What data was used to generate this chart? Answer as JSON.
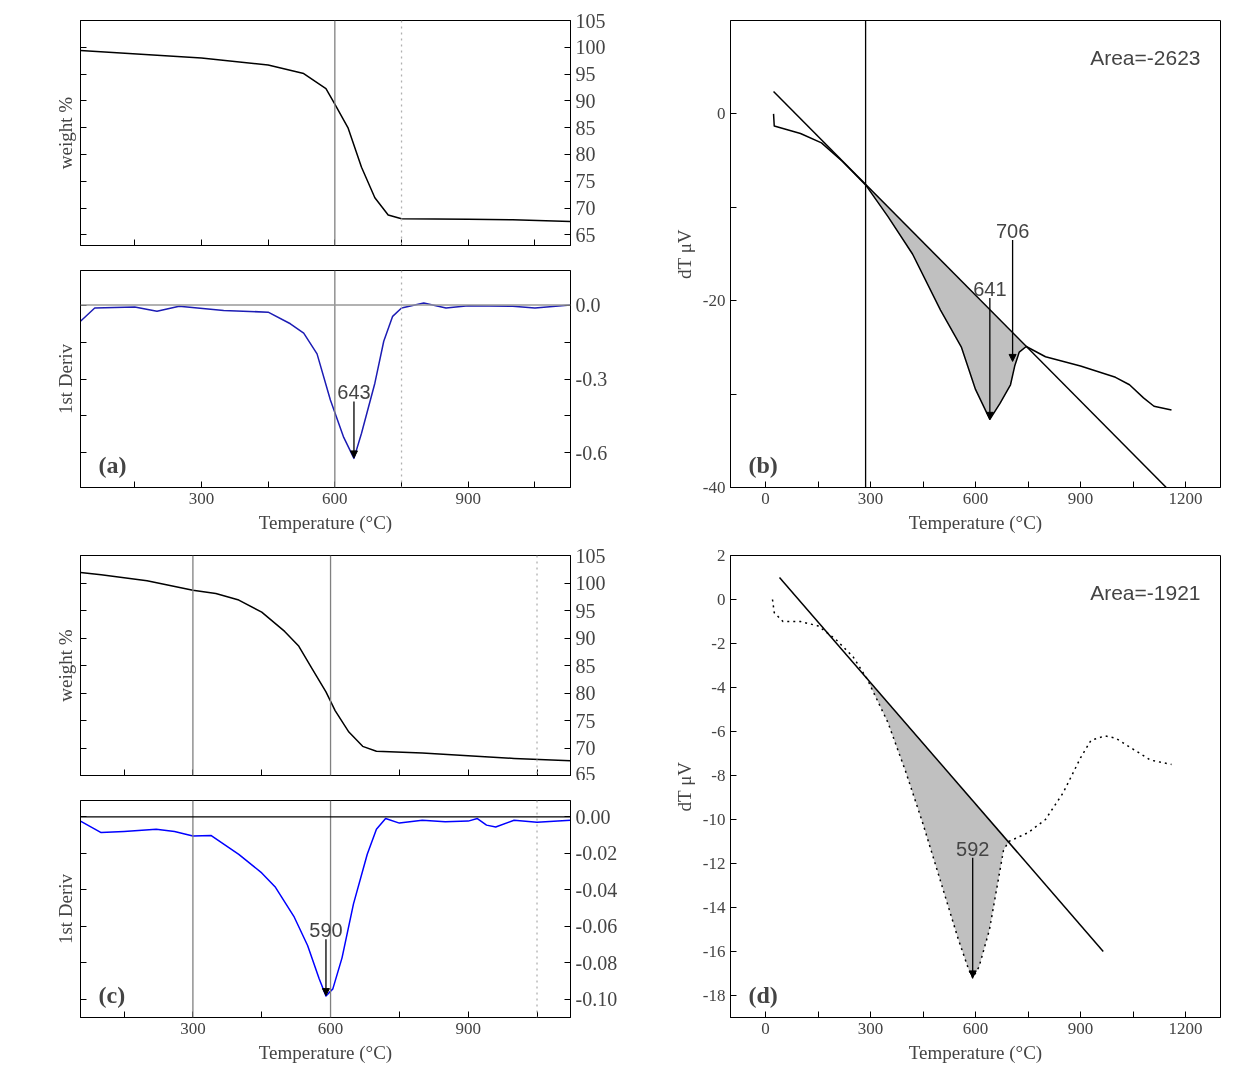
{
  "chart_data": [
    {
      "type": "line",
      "ylabel": "weight %",
      "tick_labels": "y",
      "xlim": [
        28,
        1130
      ],
      "ylim": [
        63,
        105
      ],
      "xticks": [
        {
          "value": 150,
          "label": null
        },
        300,
        {
          "value": 450,
          "label": null
        },
        600,
        {
          "value": 750,
          "label": null
        },
        900,
        {
          "value": 1050,
          "label": null
        }
      ],
      "yticks": [
        65,
        70,
        75,
        80,
        85,
        90,
        95,
        100,
        105
      ],
      "series": [
        {
          "color": "#000000",
          "x": [
            28,
            300,
            450,
            530,
            580,
            600,
            630,
            660,
            690,
            720,
            750,
            900,
            1000,
            1130
          ],
          "values": [
            99.4,
            98.0,
            96.7,
            95.1,
            92.3,
            89.4,
            84.9,
            77.6,
            71.9,
            68.7,
            68.0,
            67.9,
            67.8,
            67.5
          ]
        }
      ],
      "ref_lines": [
        {
          "axis": "x",
          "value": 600,
          "color": "#808080",
          "line_style": "solid"
        },
        {
          "axis": "x",
          "value": 750,
          "color": "#b0b0b0",
          "line_style": "dotted"
        }
      ]
    },
    {
      "type": "line",
      "title": "(a)",
      "ylabel": "1st Deriv",
      "xlabel": "Temperature (°C)",
      "xlim": [
        28,
        1130
      ],
      "ylim": [
        -0.74,
        0.14
      ],
      "xticks": [
        {
          "value": 150,
          "label": null
        },
        300,
        {
          "value": 450,
          "label": null
        },
        600,
        {
          "value": 750,
          "label": null
        },
        900,
        {
          "value": 1050,
          "label": null
        }
      ],
      "yticks": [
        {
          "value": 0,
          "label": "0.0"
        },
        {
          "value": -0.15,
          "label": null
        },
        -0.3,
        {
          "value": -0.45,
          "label": null
        },
        -0.6
      ],
      "series": [
        {
          "color": "#1c1cb4",
          "x": [
            28,
            60,
            150,
            200,
            250,
            350,
            450,
            500,
            530,
            560,
            590,
            620,
            643,
            660,
            690,
            710,
            730,
            750,
            800,
            850,
            900,
            1000,
            1050,
            1130
          ],
          "values": [
            -0.066,
            -0.012,
            -0.008,
            -0.025,
            -0.005,
            -0.022,
            -0.029,
            -0.076,
            -0.114,
            -0.198,
            -0.385,
            -0.537,
            -0.622,
            -0.52,
            -0.317,
            -0.147,
            -0.046,
            -0.012,
            0.008,
            -0.012,
            -0.003,
            -0.005,
            -0.012,
            0.0
          ]
        }
      ],
      "ref_lines": [
        {
          "axis": "x",
          "value": 600,
          "color": "#808080",
          "line_style": "solid"
        },
        {
          "axis": "x",
          "value": 750,
          "color": "#b0b0b0",
          "line_style": "dotted"
        },
        {
          "axis": "y",
          "value": 0,
          "color": "#999999",
          "line_style": "solid"
        }
      ],
      "annotations": [
        {
          "text": "643",
          "x": 643,
          "y": -0.62
        }
      ]
    },
    {
      "type": "line",
      "title": "(b)",
      "ylabel": "dT μV",
      "xlabel": "Temperature (°C)",
      "xlim": [
        -100,
        1300
      ],
      "ylim": [
        -40,
        10
      ],
      "xticks": [
        0,
        {
          "value": 150,
          "label": null
        },
        300,
        {
          "value": 450,
          "label": null
        },
        600,
        {
          "value": 750,
          "label": null
        },
        900,
        {
          "value": 1050,
          "label": null
        },
        1200
      ],
      "yticks": [
        -40,
        {
          "value": -30,
          "label": null
        },
        -20,
        {
          "value": -10,
          "label": null
        },
        0
      ],
      "series": [
        {
          "color": "#000000",
          "x": [
            23,
            25,
            100,
            160,
            220,
            286,
            350,
            420,
            500,
            560,
            600,
            641,
            670,
            700,
            712,
            725,
            745,
            800,
            900,
            1000,
            1040,
            1080,
            1110,
            1160
          ],
          "values": [
            0,
            -1.3,
            -2.1,
            -3.1,
            -5.1,
            -7.6,
            -11.0,
            -15.0,
            -21.0,
            -25.0,
            -29.5,
            -32.7,
            -31.0,
            -29.0,
            -27.0,
            -25.5,
            -24.9,
            -26.0,
            -27.0,
            -28.2,
            -29.0,
            -30.4,
            -31.3,
            -31.7
          ],
          "lower": [
            null,
            null,
            null,
            null,
            null,
            -7.6,
            -11.0,
            -15.0,
            -21.0,
            -25.0,
            -29.5,
            -32.7,
            -31.0,
            -29.0,
            -27.0,
            -25.5,
            -24.9,
            null,
            null,
            null,
            null,
            null,
            null,
            null
          ],
          "upper": [
            null,
            null,
            null,
            null,
            null,
            -7.5,
            -10.0,
            -12.6,
            -15.6,
            -17.9,
            -19.4,
            -21.0,
            -22.1,
            -23.2,
            -23.6,
            -24.1,
            -24.9,
            null,
            null,
            null,
            null,
            null,
            null,
            null
          ]
        },
        {
          "color": "#000000",
          "x": [
            23,
            1145
          ],
          "values": [
            2.4,
            -40
          ]
        }
      ],
      "ref_lines": [
        {
          "axis": "x",
          "value": 286,
          "color": "#000000",
          "line_style": "solid"
        }
      ],
      "annotations": [
        "Area=-2623",
        {
          "text": "641",
          "x": 641,
          "y": -32.7
        },
        {
          "text": "706",
          "x": 706,
          "y": -26.5
        }
      ]
    },
    {
      "type": "line",
      "ylabel": "weight %",
      "tick_labels": "y",
      "xlim": [
        55,
        1123
      ],
      "ylim": [
        65,
        105
      ],
      "xticks": [
        {
          "value": 150,
          "label": null
        },
        300,
        {
          "value": 450,
          "label": null
        },
        600,
        {
          "value": 750,
          "label": null
        },
        900,
        {
          "value": 1050,
          "label": null
        }
      ],
      "yticks": [
        65,
        70,
        75,
        80,
        85,
        90,
        95,
        100,
        105
      ],
      "series": [
        {
          "color": "#000000",
          "x": [
            55,
            100,
            200,
            300,
            350,
            400,
            450,
            500,
            530,
            560,
            590,
            610,
            640,
            670,
            700,
            800,
            900,
            1000,
            1123
          ],
          "values": [
            101.9,
            101.5,
            100.4,
            98.7,
            98.1,
            96.9,
            94.7,
            91.2,
            88.6,
            84.4,
            80.2,
            76.8,
            72.9,
            70.3,
            69.4,
            69.1,
            68.6,
            68.1,
            67.7
          ]
        }
      ],
      "ref_lines": [
        {
          "axis": "x",
          "value": 300,
          "color": "#808080",
          "line_style": "solid"
        },
        {
          "axis": "x",
          "value": 600,
          "color": "#808080",
          "line_style": "solid"
        },
        {
          "axis": "x",
          "value": 1050,
          "color": "#b0b0b0",
          "line_style": "dotted"
        }
      ]
    },
    {
      "type": "line",
      "title": "(c)",
      "ylabel": "1st Deriv",
      "xlabel": "Temperature (°C)",
      "xlim": [
        55,
        1123
      ],
      "ylim": [
        -0.11,
        0.009
      ],
      "xticks": [
        {
          "value": 150,
          "label": null
        },
        300,
        {
          "value": 450,
          "label": null
        },
        600,
        {
          "value": 750,
          "label": null
        },
        900,
        {
          "value": 1050,
          "label": null
        }
      ],
      "yticks": [
        {
          "value": 0,
          "label": "0.00"
        },
        -0.02,
        -0.04,
        -0.06,
        -0.08,
        {
          "value": -0.1,
          "label": "-0.10"
        }
      ],
      "series": [
        {
          "color": "#0000ff",
          "x": [
            55,
            100,
            150,
            220,
            260,
            300,
            340,
            400,
            450,
            480,
            520,
            550,
            575,
            590,
            605,
            625,
            650,
            680,
            700,
            720,
            750,
            800,
            850,
            900,
            920,
            940,
            960,
            1000,
            1050,
            1123
          ],
          "values": [
            -0.0023,
            -0.0086,
            -0.008,
            -0.0068,
            -0.008,
            -0.0105,
            -0.0102,
            -0.0205,
            -0.0307,
            -0.0386,
            -0.0545,
            -0.0705,
            -0.0886,
            -0.0982,
            -0.0943,
            -0.0773,
            -0.0477,
            -0.0205,
            -0.0068,
            -0.0009,
            -0.0034,
            -0.0018,
            -0.0027,
            -0.0023,
            -0.0009,
            -0.0045,
            -0.0055,
            -0.0018,
            -0.0029,
            -0.0018
          ]
        }
      ],
      "ref_lines": [
        {
          "axis": "x",
          "value": 300,
          "color": "#808080",
          "line_style": "solid"
        },
        {
          "axis": "x",
          "value": 600,
          "color": "#808080",
          "line_style": "solid"
        },
        {
          "axis": "x",
          "value": 1050,
          "color": "#b0b0b0",
          "line_style": "dotted"
        },
        {
          "axis": "y",
          "value": 0,
          "color": "#000000",
          "line_style": "solid"
        }
      ],
      "annotations": [
        {
          "text": "590",
          "x": 590,
          "y": -0.098
        }
      ]
    },
    {
      "type": "line",
      "title": "(d)",
      "ylabel": "dT μV",
      "xlabel": "Temperature (°C)",
      "xlim": [
        -100,
        1300
      ],
      "ylim": [
        -19,
        2
      ],
      "xticks": [
        0,
        {
          "value": 150,
          "label": null
        },
        300,
        {
          "value": 450,
          "label": null
        },
        600,
        {
          "value": 750,
          "label": null
        },
        900,
        {
          "value": 1050,
          "label": null
        },
        1200
      ],
      "yticks": [
        -18,
        -16,
        -14,
        -12,
        -10,
        -8,
        -6,
        -4,
        -2,
        0,
        2
      ],
      "series": [
        {
          "color": "#000000",
          "line_style": "dotted",
          "x": [
            20,
            25,
            50,
            100,
            150,
            200,
            250,
            290,
            350,
            400,
            450,
            500,
            550,
            580,
            592,
            610,
            640,
            660,
            680,
            695,
            750,
            800,
            850,
            900,
            930,
            970,
            1000,
            1050,
            1100,
            1160
          ],
          "values": [
            0,
            -0.6,
            -1.0,
            -1.0,
            -1.2,
            -1.8,
            -2.6,
            -3.6,
            -5.6,
            -7.8,
            -10.2,
            -12.8,
            -15.4,
            -16.8,
            -17.2,
            -16.7,
            -15.0,
            -13.2,
            -11.4,
            -11.0,
            -10.6,
            -10.0,
            -8.8,
            -7.2,
            -6.4,
            -6.2,
            -6.3,
            -6.8,
            -7.3,
            -7.5
          ],
          "lower": [
            null,
            null,
            null,
            null,
            null,
            null,
            null,
            -3.6,
            -5.6,
            -7.8,
            -10.2,
            -12.8,
            -15.4,
            -16.8,
            -17.2,
            -16.7,
            -15.0,
            -13.2,
            -11.4,
            -11.0,
            null,
            null,
            null,
            null,
            null,
            null,
            null,
            null,
            null,
            null
          ],
          "upper": [
            null,
            null,
            null,
            null,
            null,
            null,
            null,
            -3.6,
            -4.7,
            -5.6,
            -6.5,
            -7.5,
            -8.4,
            -8.9,
            -9.2,
            -9.5,
            -10.0,
            -10.4,
            -10.8,
            -11.0,
            null,
            null,
            null,
            null,
            null,
            null,
            null,
            null,
            null,
            null
          ]
        },
        {
          "color": "#000000",
          "x": [
            40,
            965
          ],
          "values": [
            1.0,
            -16.0
          ]
        }
      ],
      "annotations": [
        "Area=-1921",
        {
          "text": "592",
          "x": 592,
          "y": -17.2
        }
      ]
    }
  ]
}
